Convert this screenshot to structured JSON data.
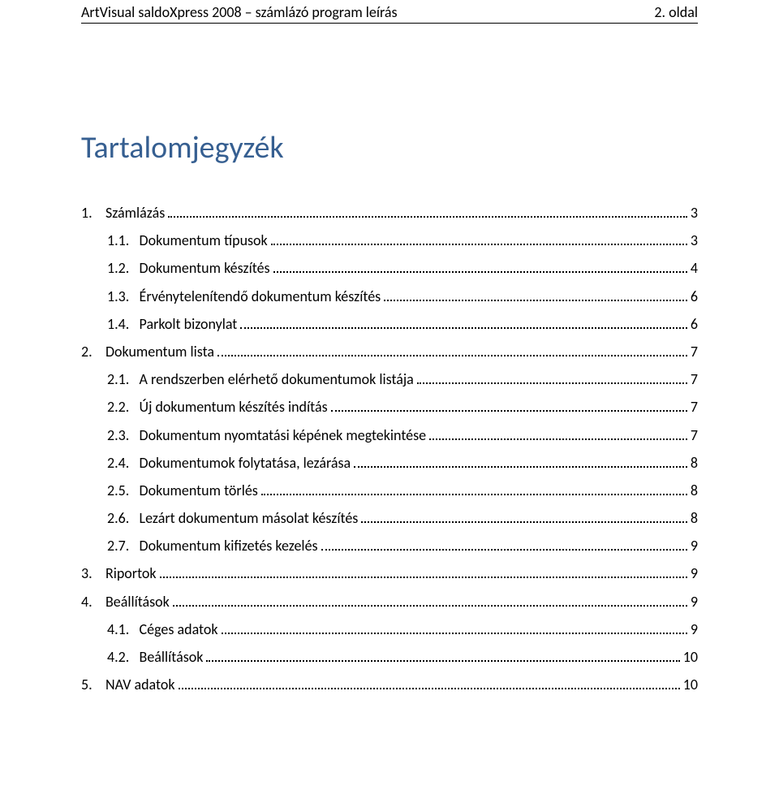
{
  "header": {
    "left": "ArtVisual saldoXpress 2008 – számlázó program leírás",
    "right": "2. oldal"
  },
  "toc": {
    "title": "Tartalomjegyzék",
    "title_color": "#365f91",
    "title_fontsize": 38,
    "entry_fontsize": 18,
    "dot_color": "#000000",
    "entries": [
      {
        "indent": 0,
        "num": "1.",
        "label": "Számlázás",
        "page": "3"
      },
      {
        "indent": 1,
        "num": "1.1.",
        "label": "Dokumentum típusok",
        "page": "3"
      },
      {
        "indent": 1,
        "num": "1.2.",
        "label": "Dokumentum készítés",
        "page": "4"
      },
      {
        "indent": 1,
        "num": "1.3.",
        "label": "Érvénytelenítendő dokumentum készítés",
        "page": "6"
      },
      {
        "indent": 1,
        "num": "1.4.",
        "label": "Parkolt bizonylat",
        "page": "6"
      },
      {
        "indent": 0,
        "num": "2.",
        "label": "Dokumentum lista",
        "page": "7"
      },
      {
        "indent": 1,
        "num": "2.1.",
        "label": "A rendszerben elérhető dokumentumok listája",
        "page": "7"
      },
      {
        "indent": 1,
        "num": "2.2.",
        "label": "Új dokumentum készítés indítás",
        "page": "7"
      },
      {
        "indent": 1,
        "num": "2.3.",
        "label": "Dokumentum nyomtatási képének megtekintése",
        "page": "7"
      },
      {
        "indent": 1,
        "num": "2.4.",
        "label": "Dokumentumok folytatása, lezárása",
        "page": "8"
      },
      {
        "indent": 1,
        "num": "2.5.",
        "label": "Dokumentum törlés",
        "page": "8"
      },
      {
        "indent": 1,
        "num": "2.6.",
        "label": "Lezárt dokumentum másolat készítés",
        "page": "8"
      },
      {
        "indent": 1,
        "num": "2.7.",
        "label": "Dokumentum kifizetés kezelés",
        "page": "9"
      },
      {
        "indent": 0,
        "num": "3.",
        "label": "Riportok",
        "page": "9"
      },
      {
        "indent": 0,
        "num": "4.",
        "label": "Beállítások",
        "page": "9"
      },
      {
        "indent": 1,
        "num": "4.1.",
        "label": "Céges adatok",
        "page": "9"
      },
      {
        "indent": 1,
        "num": "4.2.",
        "label": "Beállítások",
        "page": "10"
      },
      {
        "indent": 0,
        "num": "5.",
        "label": "NAV adatok",
        "page": "10"
      }
    ]
  }
}
